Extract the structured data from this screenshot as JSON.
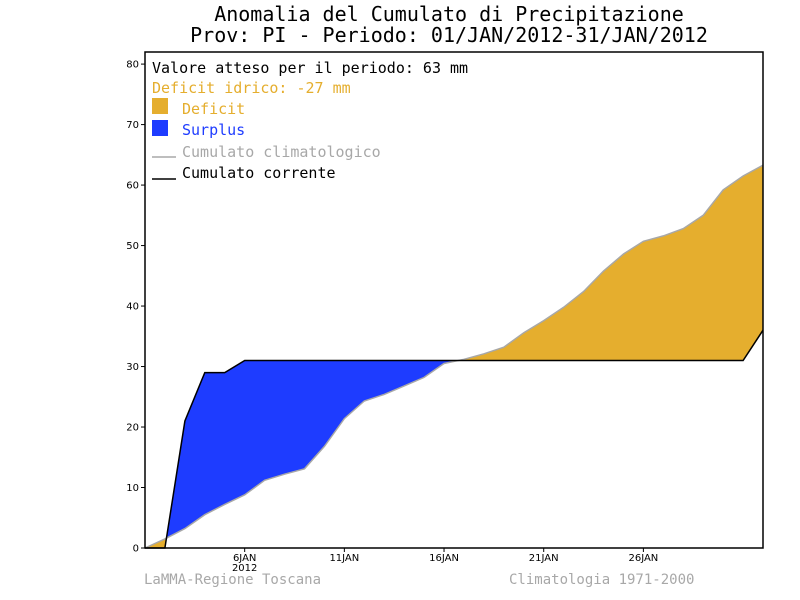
{
  "chart_data": {
    "type": "area",
    "title_line1": "Anomalia del Cumulato di Precipitazione",
    "title_line2": "Prov: PI - Periodo: 01/JAN/2012-31/JAN/2012",
    "legend": {
      "expected": "Valore atteso per il periodo: 63 mm",
      "deficit_text": "Deficit idrico: -27 mm",
      "deficit_label": "Deficit",
      "surplus_label": "Surplus",
      "climatological_label": "Cumulato climatologico",
      "current_label": "Cumulato corrente"
    },
    "ylim": [
      0,
      82
    ],
    "y_ticks": [
      0,
      10,
      20,
      30,
      40,
      50,
      60,
      70,
      80
    ],
    "xlim": [
      1,
      32
    ],
    "x_ticks": [
      {
        "day": 6,
        "label": "6JAN",
        "sub": "2012"
      },
      {
        "day": 11,
        "label": "11JAN",
        "sub": ""
      },
      {
        "day": 16,
        "label": "16JAN",
        "sub": ""
      },
      {
        "day": 21,
        "label": "21JAN",
        "sub": ""
      },
      {
        "day": 26,
        "label": "26JAN",
        "sub": ""
      }
    ],
    "series": [
      {
        "name": "Cumulato climatologico",
        "color": "#a8a8a8",
        "x": [
          1,
          2,
          3,
          4,
          5,
          6,
          7,
          8,
          9,
          10,
          11,
          12,
          13,
          14,
          15,
          16,
          17,
          18,
          19,
          20,
          21,
          22,
          23,
          24,
          25,
          26,
          27,
          28,
          29,
          30,
          31,
          32
        ],
        "y": [
          0,
          1.5,
          3.2,
          5.5,
          7.2,
          8.8,
          11.2,
          12.2,
          13.1,
          16.8,
          21.4,
          24.3,
          25.4,
          26.8,
          28.2,
          30.5,
          31.2,
          32.1,
          33.2,
          35.6,
          37.6,
          39.8,
          42.4,
          45.8,
          48.6,
          50.7,
          51.6,
          52.8,
          55.0,
          59.2,
          61.5,
          63.3
        ]
      },
      {
        "name": "Cumulato corrente",
        "color": "#000000",
        "x": [
          1,
          2,
          3,
          4,
          5,
          6,
          7,
          8,
          9,
          10,
          11,
          12,
          13,
          14,
          15,
          16,
          17,
          18,
          19,
          20,
          21,
          22,
          23,
          24,
          25,
          26,
          27,
          28,
          29,
          30,
          31,
          32
        ],
        "y": [
          0,
          0,
          21,
          29,
          29,
          31,
          31,
          31,
          31,
          31,
          31,
          31,
          31,
          31,
          31,
          31,
          31,
          31,
          31,
          31,
          31,
          31,
          31,
          31,
          31,
          31,
          31,
          31,
          31,
          31,
          31,
          36
        ]
      }
    ],
    "deficit_color": "#e5ae2e",
    "surplus_color": "#1e3cff",
    "footer_left": "LaMMA-Regione Toscana",
    "footer_right": "Climatologia 1971-2000"
  }
}
